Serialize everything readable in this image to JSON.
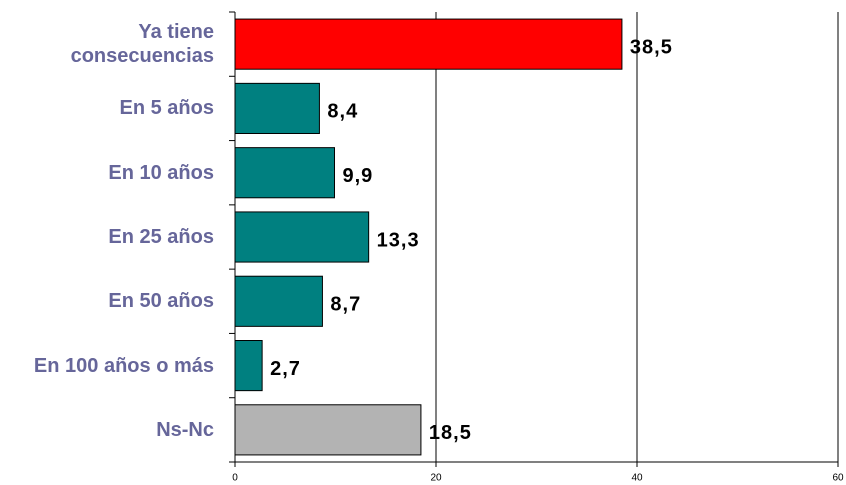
{
  "chart_data": {
    "type": "bar",
    "orientation": "horizontal",
    "categories": [
      "Ya tiene consecuencias",
      "En 5 años",
      "En 10 años",
      "En 25 años",
      "En 50 años",
      "En 100 años o más",
      "Ns-Nc"
    ],
    "values": [
      38.5,
      8.4,
      9.9,
      13.3,
      8.7,
      2.7,
      18.5
    ],
    "value_labels": [
      "38,5",
      "8,4",
      "9,9",
      "13,3",
      "8,7",
      "2,7",
      "18,5"
    ],
    "colors": [
      "#ff0000",
      "#008080",
      "#008080",
      "#008080",
      "#008080",
      "#008080",
      "#b3b3b3"
    ],
    "xlim": [
      0,
      60
    ],
    "xticks": [
      0,
      20,
      40,
      60
    ],
    "grid": true
  }
}
